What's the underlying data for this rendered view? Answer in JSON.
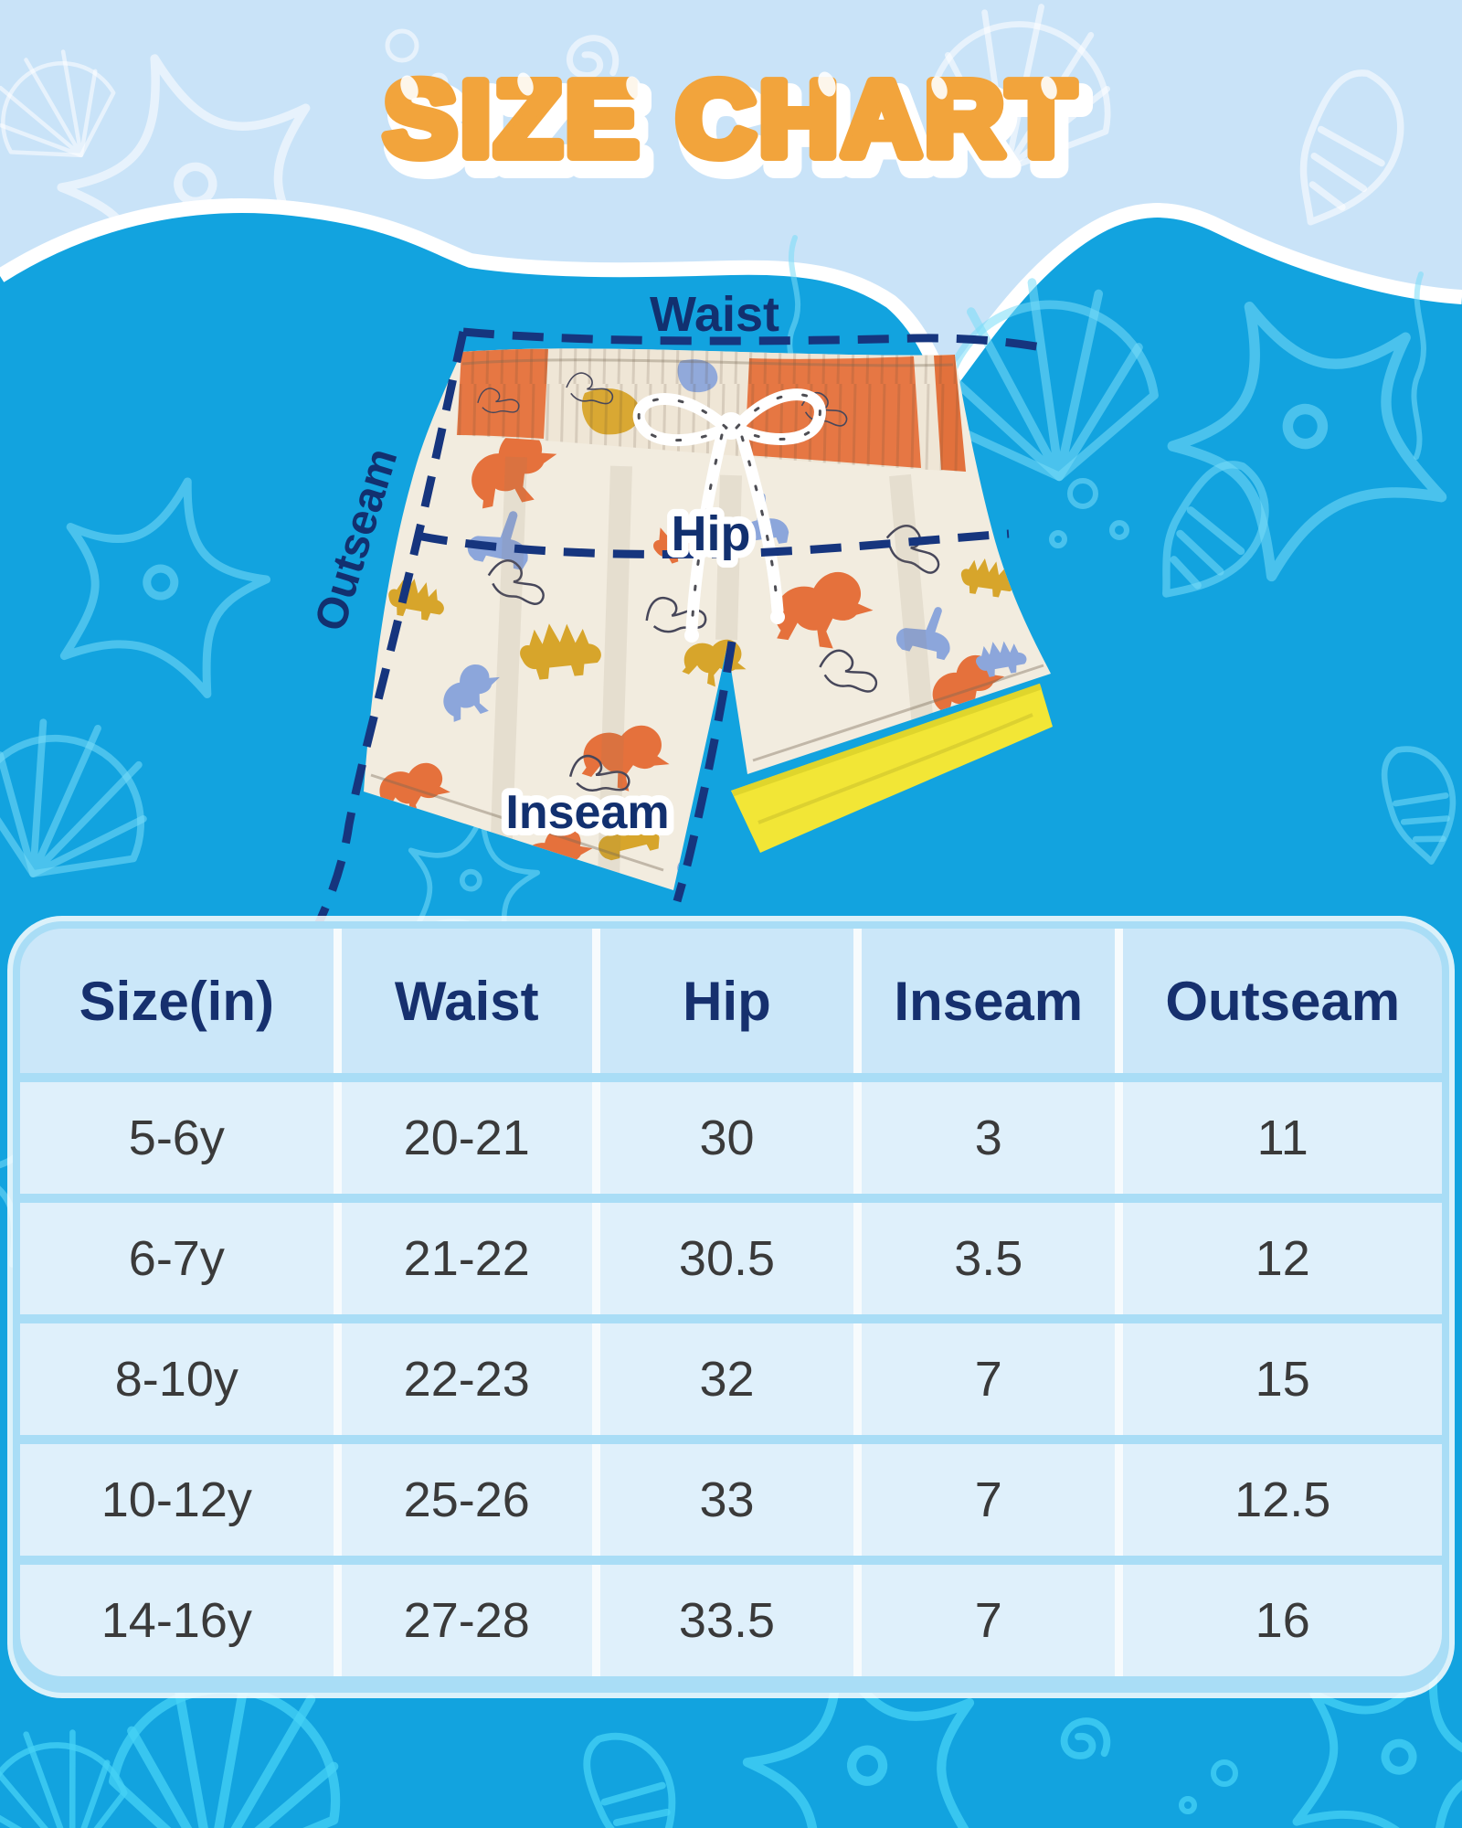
{
  "title": "SIZE CHART",
  "diagram": {
    "waist_label": "Waist",
    "hip_label": "Hip",
    "inseam_label": "Inseam",
    "outseam_label": "Outseam"
  },
  "size_table": {
    "headers": [
      "Size(in)",
      "Waist",
      "Hip",
      "Inseam",
      "Outseam"
    ],
    "rows": [
      [
        "5-6y",
        "20-21",
        "30",
        "3",
        "11"
      ],
      [
        "6-7y",
        "21-22",
        "30.5",
        "3.5",
        "12"
      ],
      [
        "8-10y",
        "22-23",
        "32",
        "7",
        "15"
      ],
      [
        "10-12y",
        "25-26",
        "33",
        "7",
        "12.5"
      ],
      [
        "14-16y",
        "27-28",
        "33.5",
        "7",
        "16"
      ]
    ]
  },
  "chart_data": {
    "type": "table",
    "title": "SIZE CHART",
    "unit": "inches",
    "columns": [
      "Size(in)",
      "Waist",
      "Hip",
      "Inseam",
      "Outseam"
    ],
    "rows": [
      [
        "5-6y",
        "20-21",
        30,
        3,
        11
      ],
      [
        "6-7y",
        "21-22",
        30.5,
        3.5,
        12
      ],
      [
        "8-10y",
        "22-23",
        32,
        7,
        15
      ],
      [
        "10-12y",
        "25-26",
        33,
        7,
        12.5
      ],
      [
        "14-16y",
        "27-28",
        33.5,
        7,
        16
      ]
    ]
  },
  "colors": {
    "title_orange": "#F2A43C",
    "top_background": "#C9E3F8",
    "sea_background": "#12A3DF",
    "navy_line": "#16357E",
    "label_navy": "#12306F",
    "table_border_blue": "#A9DDF6",
    "table_header_bg": "#CBE7F9",
    "table_cell_bg": "#DFF0FB",
    "header_text": "#16306E",
    "cell_text": "#3A3A3A",
    "trunks_cream": "#F2ECDF",
    "print_orange": "#E5713C",
    "print_mustard": "#D7A52B",
    "print_periwinkle": "#8CA6DB",
    "liner_yellow": "#F2E636"
  }
}
